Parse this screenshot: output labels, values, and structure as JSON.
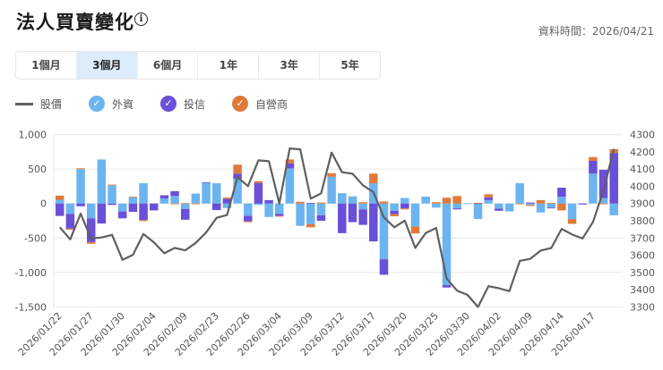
{
  "header": {
    "title": "法人買賣變化",
    "info_icon": "info-icon",
    "data_time": "資料時間：2026/04/21"
  },
  "tabs": [
    {
      "label": "1個月",
      "active": false
    },
    {
      "label": "3個月",
      "active": true
    },
    {
      "label": "6個月",
      "active": false
    },
    {
      "label": "1年",
      "active": false
    },
    {
      "label": "3年",
      "active": false
    },
    {
      "label": "5年",
      "active": false
    }
  ],
  "legend": [
    {
      "label": "股價",
      "color": "#5f5f5f",
      "icon": "line"
    },
    {
      "label": "外資",
      "color": "#6cb4f0",
      "icon": "check-icon"
    },
    {
      "label": "投信",
      "color": "#6a4fd8",
      "icon": "check-icon"
    },
    {
      "label": "自營商",
      "color": "#e07a3a",
      "icon": "check-icon"
    }
  ],
  "chart_data": {
    "type": "bar",
    "stacked": true,
    "grid": true,
    "left_axis": {
      "ylim": [
        -1500,
        1000
      ],
      "ticks": [
        "1,000",
        "500",
        "0",
        "-500",
        "-1,000",
        "-1,500"
      ]
    },
    "right_axis": {
      "ylim": [
        3300,
        4300
      ],
      "ticks": [
        "4300",
        "4200",
        "4100",
        "4000",
        "3900",
        "3800",
        "3700",
        "3600",
        "3500",
        "3400",
        "3300"
      ]
    },
    "tick_labels": [
      "2026/01/22",
      "2026/01/27",
      "2026/01/30",
      "2026/02/04",
      "2026/02/09",
      "2026/02/23",
      "2026/02/26",
      "2026/03/04",
      "2026/03/09",
      "2026/03/12",
      "2026/03/17",
      "2026/03/20",
      "2026/03/25",
      "2026/03/30",
      "2026/04/02",
      "2026/04/09",
      "2026/04/14",
      "2026/04/17"
    ],
    "series": [
      {
        "name": "外資",
        "type": "bar",
        "color": "#6cb4f0",
        "values": [
          55,
          -150,
          500,
          -215,
          640,
          265,
          -115,
          90,
          295,
          0,
          75,
          110,
          -80,
          145,
          300,
          295,
          -65,
          360,
          -180,
          -20,
          -195,
          -150,
          510,
          -325,
          -300,
          -170,
          390,
          150,
          105,
          -85,
          295,
          -810,
          -105,
          80,
          -335,
          100,
          -60,
          -1185,
          -70,
          5,
          -225,
          50,
          -75,
          -115,
          295,
          -20,
          -130,
          -60,
          100,
          -225,
          0,
          435,
          80,
          -170
        ]
      },
      {
        "name": "投信",
        "type": "bar",
        "color": "#6a4fd8",
        "values": [
          -180,
          -215,
          -40,
          -345,
          -290,
          -20,
          -100,
          -120,
          -240,
          -100,
          45,
          70,
          -155,
          0,
          10,
          -95,
          70,
          75,
          -80,
          300,
          50,
          -30,
          75,
          0,
          10,
          -80,
          0,
          -430,
          -270,
          -225,
          -550,
          -225,
          -50,
          -70,
          0,
          0,
          0,
          -35,
          -15,
          0,
          5,
          40,
          -30,
          0,
          0,
          15,
          0,
          -10,
          130,
          0,
          -15,
          185,
          410,
          735
        ]
      },
      {
        "name": "自營商",
        "type": "bar",
        "color": "#e07a3a",
        "values": [
          60,
          -15,
          12,
          -25,
          0,
          10,
          0,
          10,
          -15,
          0,
          0,
          -5,
          5,
          -5,
          0,
          0,
          17,
          130,
          -10,
          25,
          0,
          -5,
          55,
          25,
          -45,
          15,
          50,
          0,
          0,
          20,
          140,
          30,
          -30,
          -15,
          -100,
          0,
          20,
          85,
          110,
          0,
          5,
          45,
          0,
          0,
          -10,
          -15,
          50,
          10,
          -100,
          -70,
          0,
          55,
          -10,
          55
        ]
      },
      {
        "name": "股價",
        "type": "line",
        "axis": "right",
        "color": "#5f5f5f",
        "values": [
          3762,
          3692,
          3841,
          3697,
          3703,
          3718,
          3573,
          3602,
          3723,
          3675,
          3611,
          3642,
          3628,
          3671,
          3732,
          3817,
          3833,
          4053,
          4001,
          4151,
          4146,
          3900,
          4220,
          4215,
          3928,
          3959,
          4196,
          4082,
          4073,
          4006,
          3966,
          3819,
          3762,
          3801,
          3642,
          3729,
          3758,
          3464,
          3394,
          3369,
          3299,
          3420,
          3408,
          3391,
          3567,
          3579,
          3627,
          3641,
          3753,
          3720,
          3697,
          3793,
          3975,
          4217
        ]
      }
    ]
  }
}
